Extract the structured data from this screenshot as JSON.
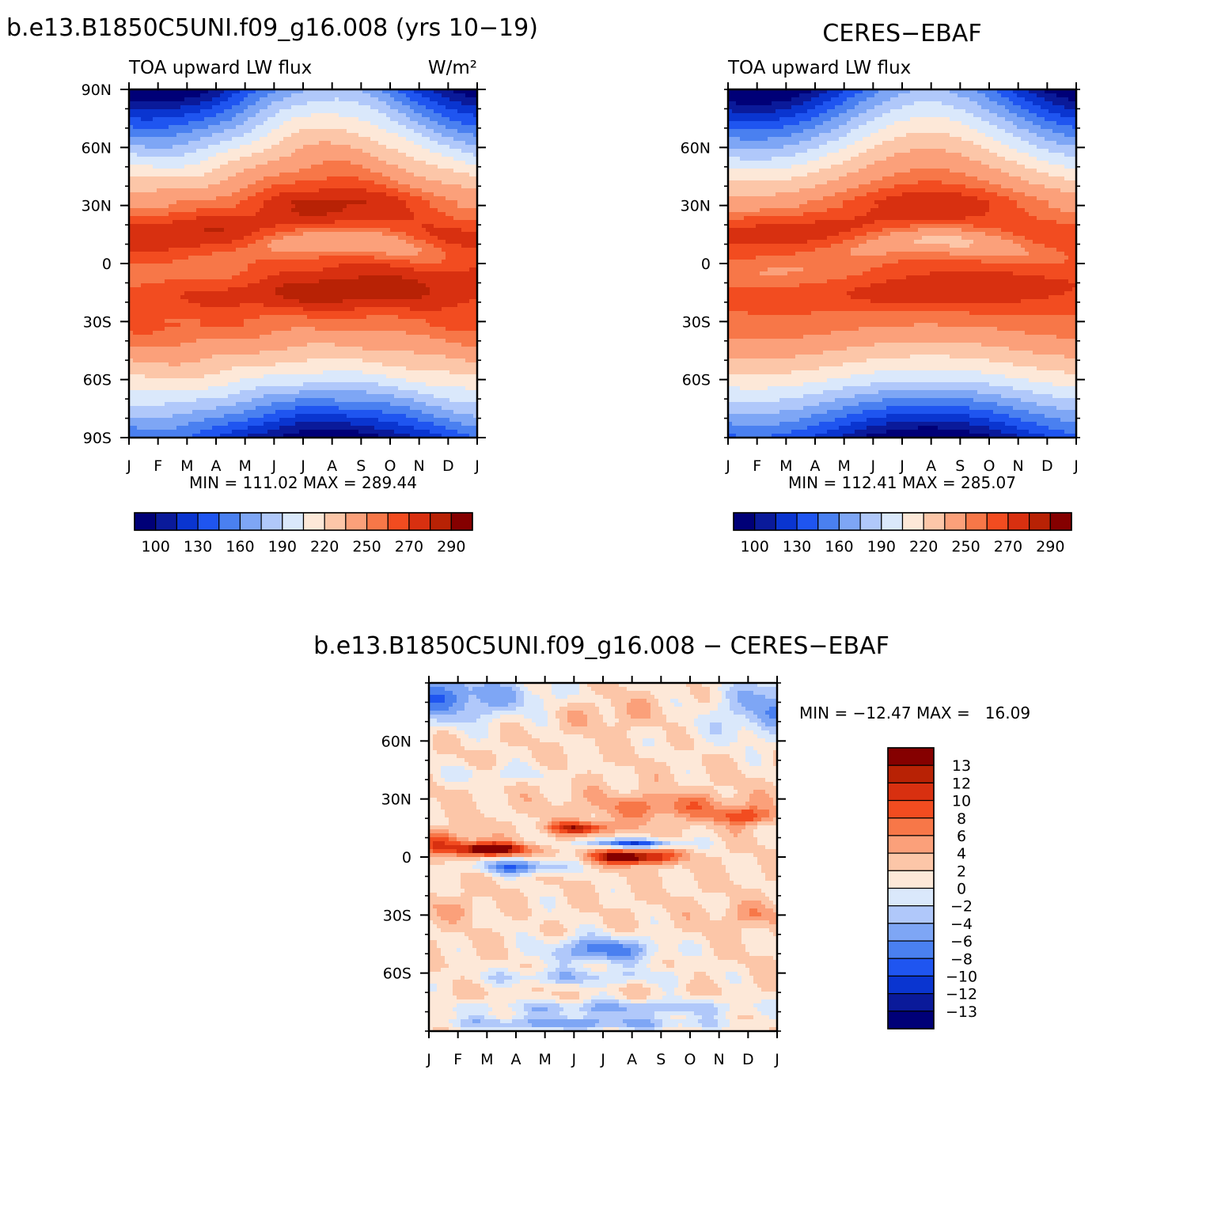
{
  "chart_data": [
    {
      "type": "heatmap",
      "title": "b.e13.B1850C5UNI.f09_g16.008 (yrs 10−19)",
      "subtitle_left": "TOA upward LW flux",
      "subtitle_right": "W/m²",
      "x_ticks": [
        "J",
        "F",
        "M",
        "A",
        "M",
        "J",
        "J",
        "A",
        "S",
        "O",
        "N",
        "D",
        "J"
      ],
      "y_ticks": [
        "90N",
        "60N",
        "30N",
        "0",
        "30S",
        "60S",
        "90S"
      ],
      "y_tick_values": [
        90,
        60,
        30,
        0,
        -30,
        -60,
        -90
      ],
      "ylim": [
        -90,
        90
      ],
      "stats": "MIN = 111.02 MAX = 289.44",
      "levels": [
        100,
        115,
        130,
        145,
        160,
        175,
        190,
        205,
        220,
        235,
        250,
        260,
        270,
        280,
        290
      ],
      "colorbar_labels": [
        "100",
        "130",
        "160",
        "190",
        "220",
        "250",
        "270",
        "290"
      ],
      "colorbar_label_values": [
        100,
        130,
        160,
        190,
        220,
        250,
        270,
        290
      ],
      "colors": [
        "#000077",
        "#0a1a9a",
        "#0a35d0",
        "#1f55f0",
        "#4a80f0",
        "#7ea6f5",
        "#b0c8fa",
        "#dae8fb",
        "#fde8d8",
        "#fcc6a8",
        "#fba07a",
        "#f77748",
        "#f24c20",
        "#d83010",
        "#b82205",
        "#850000"
      ]
    },
    {
      "type": "heatmap",
      "title": "CERES−EBAF",
      "subtitle_left": "TOA upward LW flux",
      "x_ticks": [
        "J",
        "F",
        "M",
        "A",
        "M",
        "J",
        "J",
        "A",
        "S",
        "O",
        "N",
        "D",
        "J"
      ],
      "y_ticks": [
        "60N",
        "30N",
        "0",
        "30S",
        "60S"
      ],
      "y_tick_values": [
        60,
        30,
        0,
        -30,
        -60
      ],
      "ylim": [
        -90,
        90
      ],
      "stats": "MIN = 112.41 MAX = 285.07",
      "levels": [
        100,
        115,
        130,
        145,
        160,
        175,
        190,
        205,
        220,
        235,
        250,
        260,
        270,
        280,
        290
      ],
      "colorbar_labels": [
        "100",
        "130",
        "160",
        "190",
        "220",
        "250",
        "270",
        "290"
      ],
      "colorbar_label_values": [
        100,
        130,
        160,
        190,
        220,
        250,
        270,
        290
      ],
      "colors": [
        "#000077",
        "#0a1a9a",
        "#0a35d0",
        "#1f55f0",
        "#4a80f0",
        "#7ea6f5",
        "#b0c8fa",
        "#dae8fb",
        "#fde8d8",
        "#fcc6a8",
        "#fba07a",
        "#f77748",
        "#f24c20",
        "#d83010",
        "#b82205",
        "#850000"
      ]
    },
    {
      "type": "heatmap",
      "title": "b.e13.B1850C5UNI.f09_g16.008 − CERES−EBAF",
      "x_ticks": [
        "J",
        "F",
        "M",
        "A",
        "M",
        "J",
        "J",
        "A",
        "S",
        "O",
        "N",
        "D",
        "J"
      ],
      "y_ticks": [
        "60N",
        "30N",
        "0",
        "30S",
        "60S"
      ],
      "y_tick_values": [
        60,
        30,
        0,
        -30,
        -60
      ],
      "ylim": [
        -90,
        90
      ],
      "stats": "MIN = −12.47 MAX =   16.09",
      "levels": [
        -13,
        -12,
        -10,
        -8,
        -6,
        -4,
        -2,
        0,
        2,
        4,
        6,
        8,
        10,
        12,
        13
      ],
      "colorbar_labels": [
        "13",
        "12",
        "10",
        "8",
        "6",
        "4",
        "2",
        "0",
        "−2",
        "−4",
        "−6",
        "−8",
        "−10",
        "−12",
        "−13"
      ],
      "colorbar_label_values": [
        13,
        12,
        10,
        8,
        6,
        4,
        2,
        0,
        -2,
        -4,
        -6,
        -8,
        -10,
        -12,
        -13
      ],
      "colors": [
        "#000077",
        "#0a1a9a",
        "#0a35d0",
        "#1f55f0",
        "#4a80f0",
        "#7ea6f5",
        "#b0c8fa",
        "#dae8fb",
        "#fde8d8",
        "#fcc6a8",
        "#fba07a",
        "#f77748",
        "#f24c20",
        "#d83010",
        "#b82205",
        "#850000"
      ]
    }
  ]
}
